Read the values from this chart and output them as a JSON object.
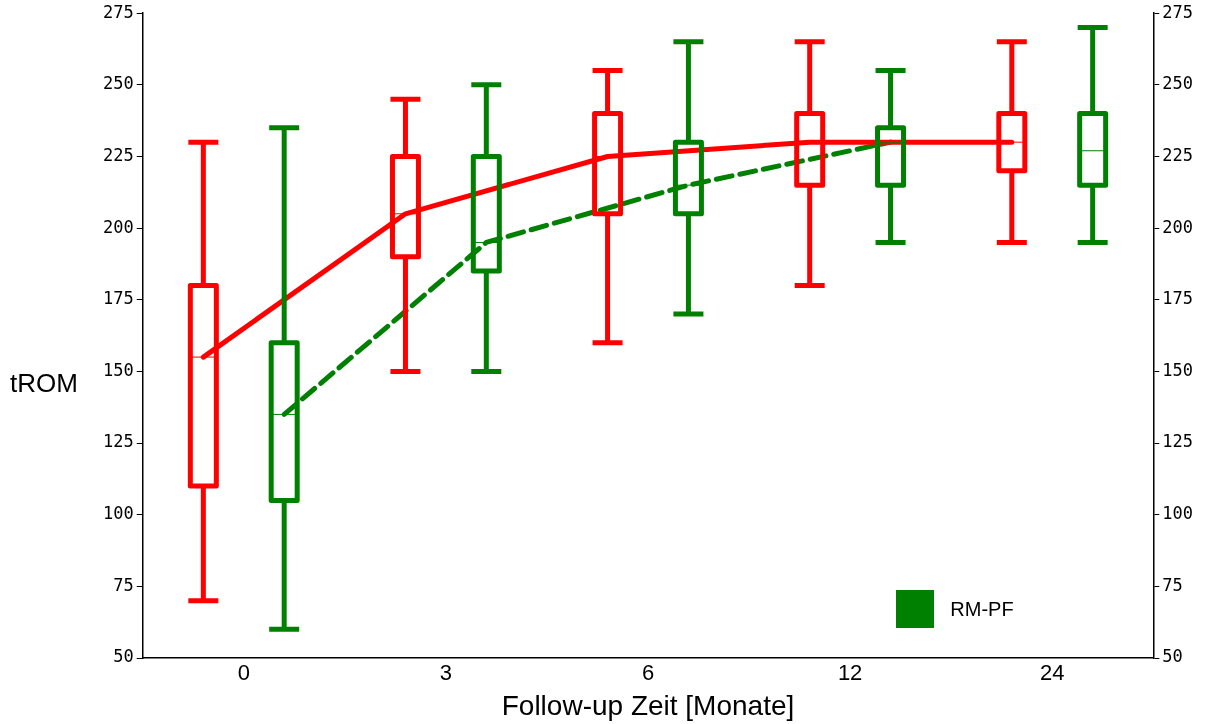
{
  "chart_data": {
    "type": "box",
    "xlabel": "Follow-up Zeit [Monate]",
    "ylabel": "tROM",
    "categories": [
      "0",
      "3",
      "6",
      "12",
      "24"
    ],
    "ylim": [
      50,
      275
    ],
    "yticks": [
      50,
      75,
      100,
      125,
      150,
      175,
      200,
      225,
      250,
      275
    ],
    "y2lim": [
      50,
      275
    ],
    "y2ticks": [
      50,
      75,
      100,
      125,
      150,
      175,
      200,
      225,
      250,
      275
    ],
    "grid": false,
    "legend": "bottom right",
    "marker": "none",
    "series": [
      {
        "color": "#ff0000",
        "boxes": [
          {
            "low": 70,
            "q1": 110,
            "median": 155,
            "q3": 180,
            "high": 230
          },
          {
            "low": 150,
            "q1": 190,
            "median": 205,
            "q3": 225,
            "high": 245
          },
          {
            "low": 160,
            "q1": 205,
            "median": 225,
            "q3": 240,
            "high": 255
          },
          {
            "low": 180,
            "q1": 215,
            "median": 230,
            "q3": 240,
            "high": 265
          },
          {
            "low": 195,
            "q1": 220,
            "median": 230,
            "q3": 240,
            "high": 265
          }
        ]
      },
      {
        "name": "RM-PF",
        "color": "#008000",
        "boxes": [
          {
            "low": 60,
            "q1": 105,
            "median": 135,
            "q3": 160,
            "high": 235
          },
          {
            "low": 150,
            "q1": 185,
            "median": 195,
            "q3": 225,
            "high": 250
          },
          {
            "low": 170,
            "q1": 205,
            "median": 215,
            "q3": 230,
            "high": 265
          },
          {
            "low": 195,
            "q1": 215,
            "median": 230,
            "q3": 235,
            "high": 255
          },
          {
            "low": 195,
            "q1": 215,
            "median": 227,
            "q3": 240,
            "high": 270
          }
        ]
      },
      {
        "type": "line",
        "color": "#ff0000",
        "line_style": "solid",
        "values": [
          155,
          205,
          225,
          230,
          230
        ]
      },
      {
        "type": "line",
        "color": "#008000",
        "line_style": "dashed",
        "values": [
          135,
          195,
          215,
          230,
          null
        ]
      }
    ]
  }
}
